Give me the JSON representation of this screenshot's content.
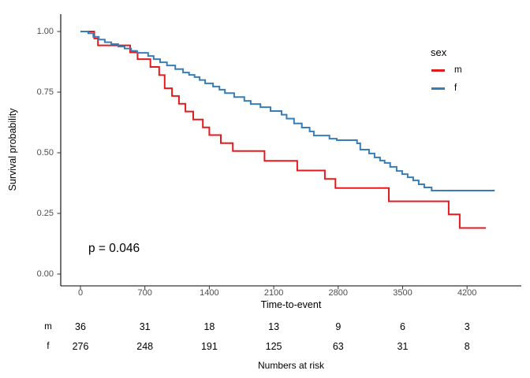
{
  "figure": {
    "y_axis": {
      "title": "Survival probability",
      "ticks": [
        {
          "label": "1.00",
          "value": 1.0
        },
        {
          "label": "0.75",
          "value": 0.75
        },
        {
          "label": "0.50",
          "value": 0.5
        },
        {
          "label": "0.25",
          "value": 0.25
        },
        {
          "label": "0.00",
          "value": 0.0
        }
      ]
    },
    "x_axis": {
      "title": "Time-to-event",
      "ticks": [
        {
          "label": "0",
          "value": 0
        },
        {
          "label": "700",
          "value": 700
        },
        {
          "label": "1400",
          "value": 1400
        },
        {
          "label": "2100",
          "value": 2100
        },
        {
          "label": "2800",
          "value": 2800
        },
        {
          "label": "3500",
          "value": 3500
        },
        {
          "label": "4200",
          "value": 4200
        }
      ]
    },
    "legend": {
      "title": "sex",
      "items": [
        {
          "label": "m",
          "color": "#E41A1C"
        },
        {
          "label": "f",
          "color": "#377EB8"
        }
      ]
    },
    "annotation": {
      "p_value": "p = 0.046"
    },
    "risk_table": {
      "title": "Numbers at risk",
      "rows": [
        {
          "label": "m",
          "values": [
            "36",
            "31",
            "18",
            "13",
            "9",
            "6",
            "3"
          ]
        },
        {
          "label": "f",
          "values": [
            "276",
            "248",
            "191",
            "125",
            "63",
            "31",
            "8"
          ]
        }
      ]
    }
  },
  "chart_data": {
    "type": "line",
    "subtype": "kaplan-meier-step-curves",
    "title": "",
    "xlabel": "Time-to-event",
    "ylabel": "Survival probability",
    "xlim": [
      0,
      4500
    ],
    "ylim": [
      0,
      1
    ],
    "x_ticks": [
      0,
      700,
      1400,
      2100,
      2800,
      3500,
      4200
    ],
    "y_ticks": [
      0,
      0.25,
      0.5,
      0.75,
      1
    ],
    "grid": false,
    "legend_position": "right",
    "p_value_text": "p = 0.046",
    "series": [
      {
        "name": "m",
        "color": "#E41A1C",
        "points": [
          [
            0,
            1.0
          ],
          [
            150,
            0.971
          ],
          [
            190,
            0.943
          ],
          [
            540,
            0.914
          ],
          [
            620,
            0.886
          ],
          [
            760,
            0.854
          ],
          [
            855,
            0.82
          ],
          [
            915,
            0.766
          ],
          [
            995,
            0.734
          ],
          [
            1070,
            0.702
          ],
          [
            1140,
            0.67
          ],
          [
            1225,
            0.637
          ],
          [
            1330,
            0.605
          ],
          [
            1400,
            0.573
          ],
          [
            1525,
            0.54
          ],
          [
            1655,
            0.507
          ],
          [
            2000,
            0.467
          ],
          [
            2355,
            0.427
          ],
          [
            2655,
            0.392
          ],
          [
            2770,
            0.355
          ],
          [
            3350,
            0.3
          ],
          [
            4000,
            0.246
          ],
          [
            4120,
            0.19
          ],
          [
            4405,
            0.19
          ]
        ]
      },
      {
        "name": "f",
        "color": "#377EB8",
        "points": [
          [
            0,
            1.0
          ],
          [
            85,
            0.993
          ],
          [
            140,
            0.978
          ],
          [
            200,
            0.967
          ],
          [
            265,
            0.956
          ],
          [
            335,
            0.948
          ],
          [
            410,
            0.938
          ],
          [
            480,
            0.93
          ],
          [
            550,
            0.92
          ],
          [
            615,
            0.912
          ],
          [
            735,
            0.899
          ],
          [
            795,
            0.886
          ],
          [
            865,
            0.873
          ],
          [
            940,
            0.86
          ],
          [
            1030,
            0.845
          ],
          [
            1115,
            0.831
          ],
          [
            1180,
            0.821
          ],
          [
            1240,
            0.812
          ],
          [
            1295,
            0.8
          ],
          [
            1355,
            0.786
          ],
          [
            1440,
            0.773
          ],
          [
            1510,
            0.76
          ],
          [
            1570,
            0.746
          ],
          [
            1670,
            0.73
          ],
          [
            1780,
            0.714
          ],
          [
            1850,
            0.701
          ],
          [
            1955,
            0.688
          ],
          [
            2065,
            0.672
          ],
          [
            2185,
            0.657
          ],
          [
            2240,
            0.641
          ],
          [
            2320,
            0.621
          ],
          [
            2405,
            0.604
          ],
          [
            2490,
            0.588
          ],
          [
            2535,
            0.571
          ],
          [
            2705,
            0.558
          ],
          [
            2785,
            0.552
          ],
          [
            3005,
            0.539
          ],
          [
            3040,
            0.513
          ],
          [
            3135,
            0.497
          ],
          [
            3195,
            0.481
          ],
          [
            3255,
            0.468
          ],
          [
            3305,
            0.458
          ],
          [
            3365,
            0.442
          ],
          [
            3435,
            0.425
          ],
          [
            3495,
            0.412
          ],
          [
            3555,
            0.399
          ],
          [
            3615,
            0.386
          ],
          [
            3675,
            0.37
          ],
          [
            3735,
            0.357
          ],
          [
            3815,
            0.344
          ],
          [
            4500,
            0.344
          ]
        ]
      }
    ],
    "numbers_at_risk": {
      "times": [
        0,
        700,
        1400,
        2100,
        2800,
        3500,
        4200
      ],
      "m": [
        36,
        31,
        18,
        13,
        9,
        6,
        3
      ],
      "f": [
        276,
        248,
        191,
        125,
        63,
        31,
        8
      ]
    }
  }
}
